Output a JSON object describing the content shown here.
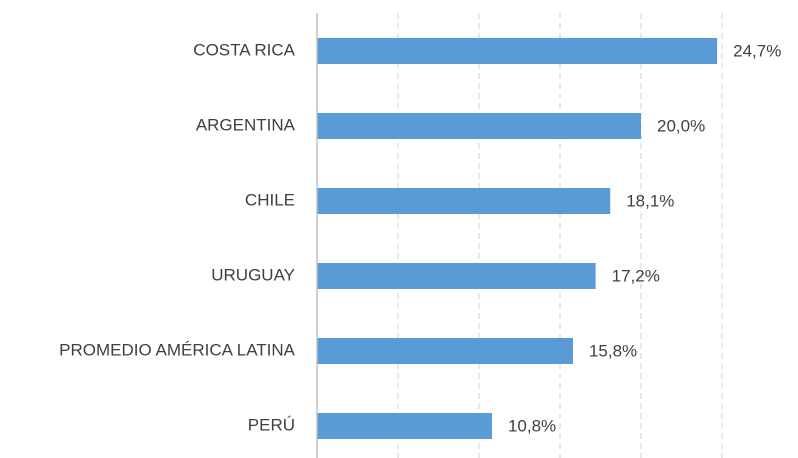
{
  "chart_data": {
    "type": "bar",
    "orientation": "horizontal",
    "categories": [
      "COSTA RICA",
      "ARGENTINA",
      "CHILE",
      "URUGUAY",
      "PROMEDIO AMÉRICA LATINA",
      "PERÚ"
    ],
    "values": [
      24.7,
      20.0,
      18.1,
      17.2,
      15.8,
      10.8
    ],
    "value_labels": [
      "24,7%",
      "20,0%",
      "18,1%",
      "17,2%",
      "15,8%",
      "10,8%"
    ],
    "color": "#5b9bd5",
    "xlim": [
      0,
      25
    ],
    "xticks": [
      0,
      5,
      10,
      15,
      20,
      25
    ],
    "grid": true
  }
}
